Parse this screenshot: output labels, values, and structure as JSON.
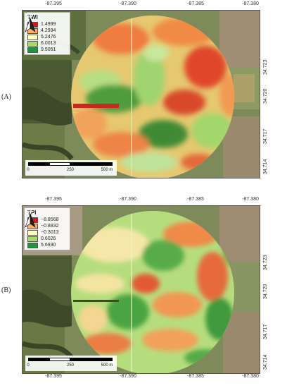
{
  "panels": [
    {
      "label": "(A)",
      "lon_ticks": [
        "-87.395",
        "-87.390",
        "-87.385",
        "-87.380"
      ],
      "lat_ticks": [
        "34.723",
        "34.720",
        "34.717",
        "34.714"
      ],
      "legend": {
        "title": "TWI",
        "items": [
          {
            "label": "1.4999",
            "color": "#d7191c"
          },
          {
            "label": "4.2934",
            "color": "#fdae61"
          },
          {
            "label": "5.2476",
            "color": "#ffffbf"
          },
          {
            "label": "6.0013",
            "color": "#a6d96a"
          },
          {
            "label": "9.5051",
            "color": "#1a9641"
          }
        ]
      },
      "scale": {
        "ticks": [
          "0",
          "250",
          "500 m"
        ]
      },
      "north_label": "N"
    },
    {
      "label": "(B)",
      "lon_ticks": [
        "-87.395",
        "-87.390",
        "-87.385",
        "-87.380"
      ],
      "lat_ticks": [
        "34.723",
        "34.720",
        "34.717",
        "34.714"
      ],
      "legend": {
        "title": "TPI",
        "items": [
          {
            "label": "−8.8568",
            "color": "#d7191c"
          },
          {
            "label": "−0.8832",
            "color": "#fdae61"
          },
          {
            "label": "−0.3013",
            "color": "#ffffbf"
          },
          {
            "label": "0.6026",
            "color": "#a6d96a"
          },
          {
            "label": "5.6930",
            "color": "#1a9641"
          }
        ]
      },
      "scale": {
        "ticks": [
          "0",
          "250",
          "500 m"
        ]
      },
      "north_label": "N"
    }
  ],
  "colors": {
    "field_green": "#5f7a3e",
    "field_tan": "#a6957a",
    "forest": "#3f4f2c"
  }
}
